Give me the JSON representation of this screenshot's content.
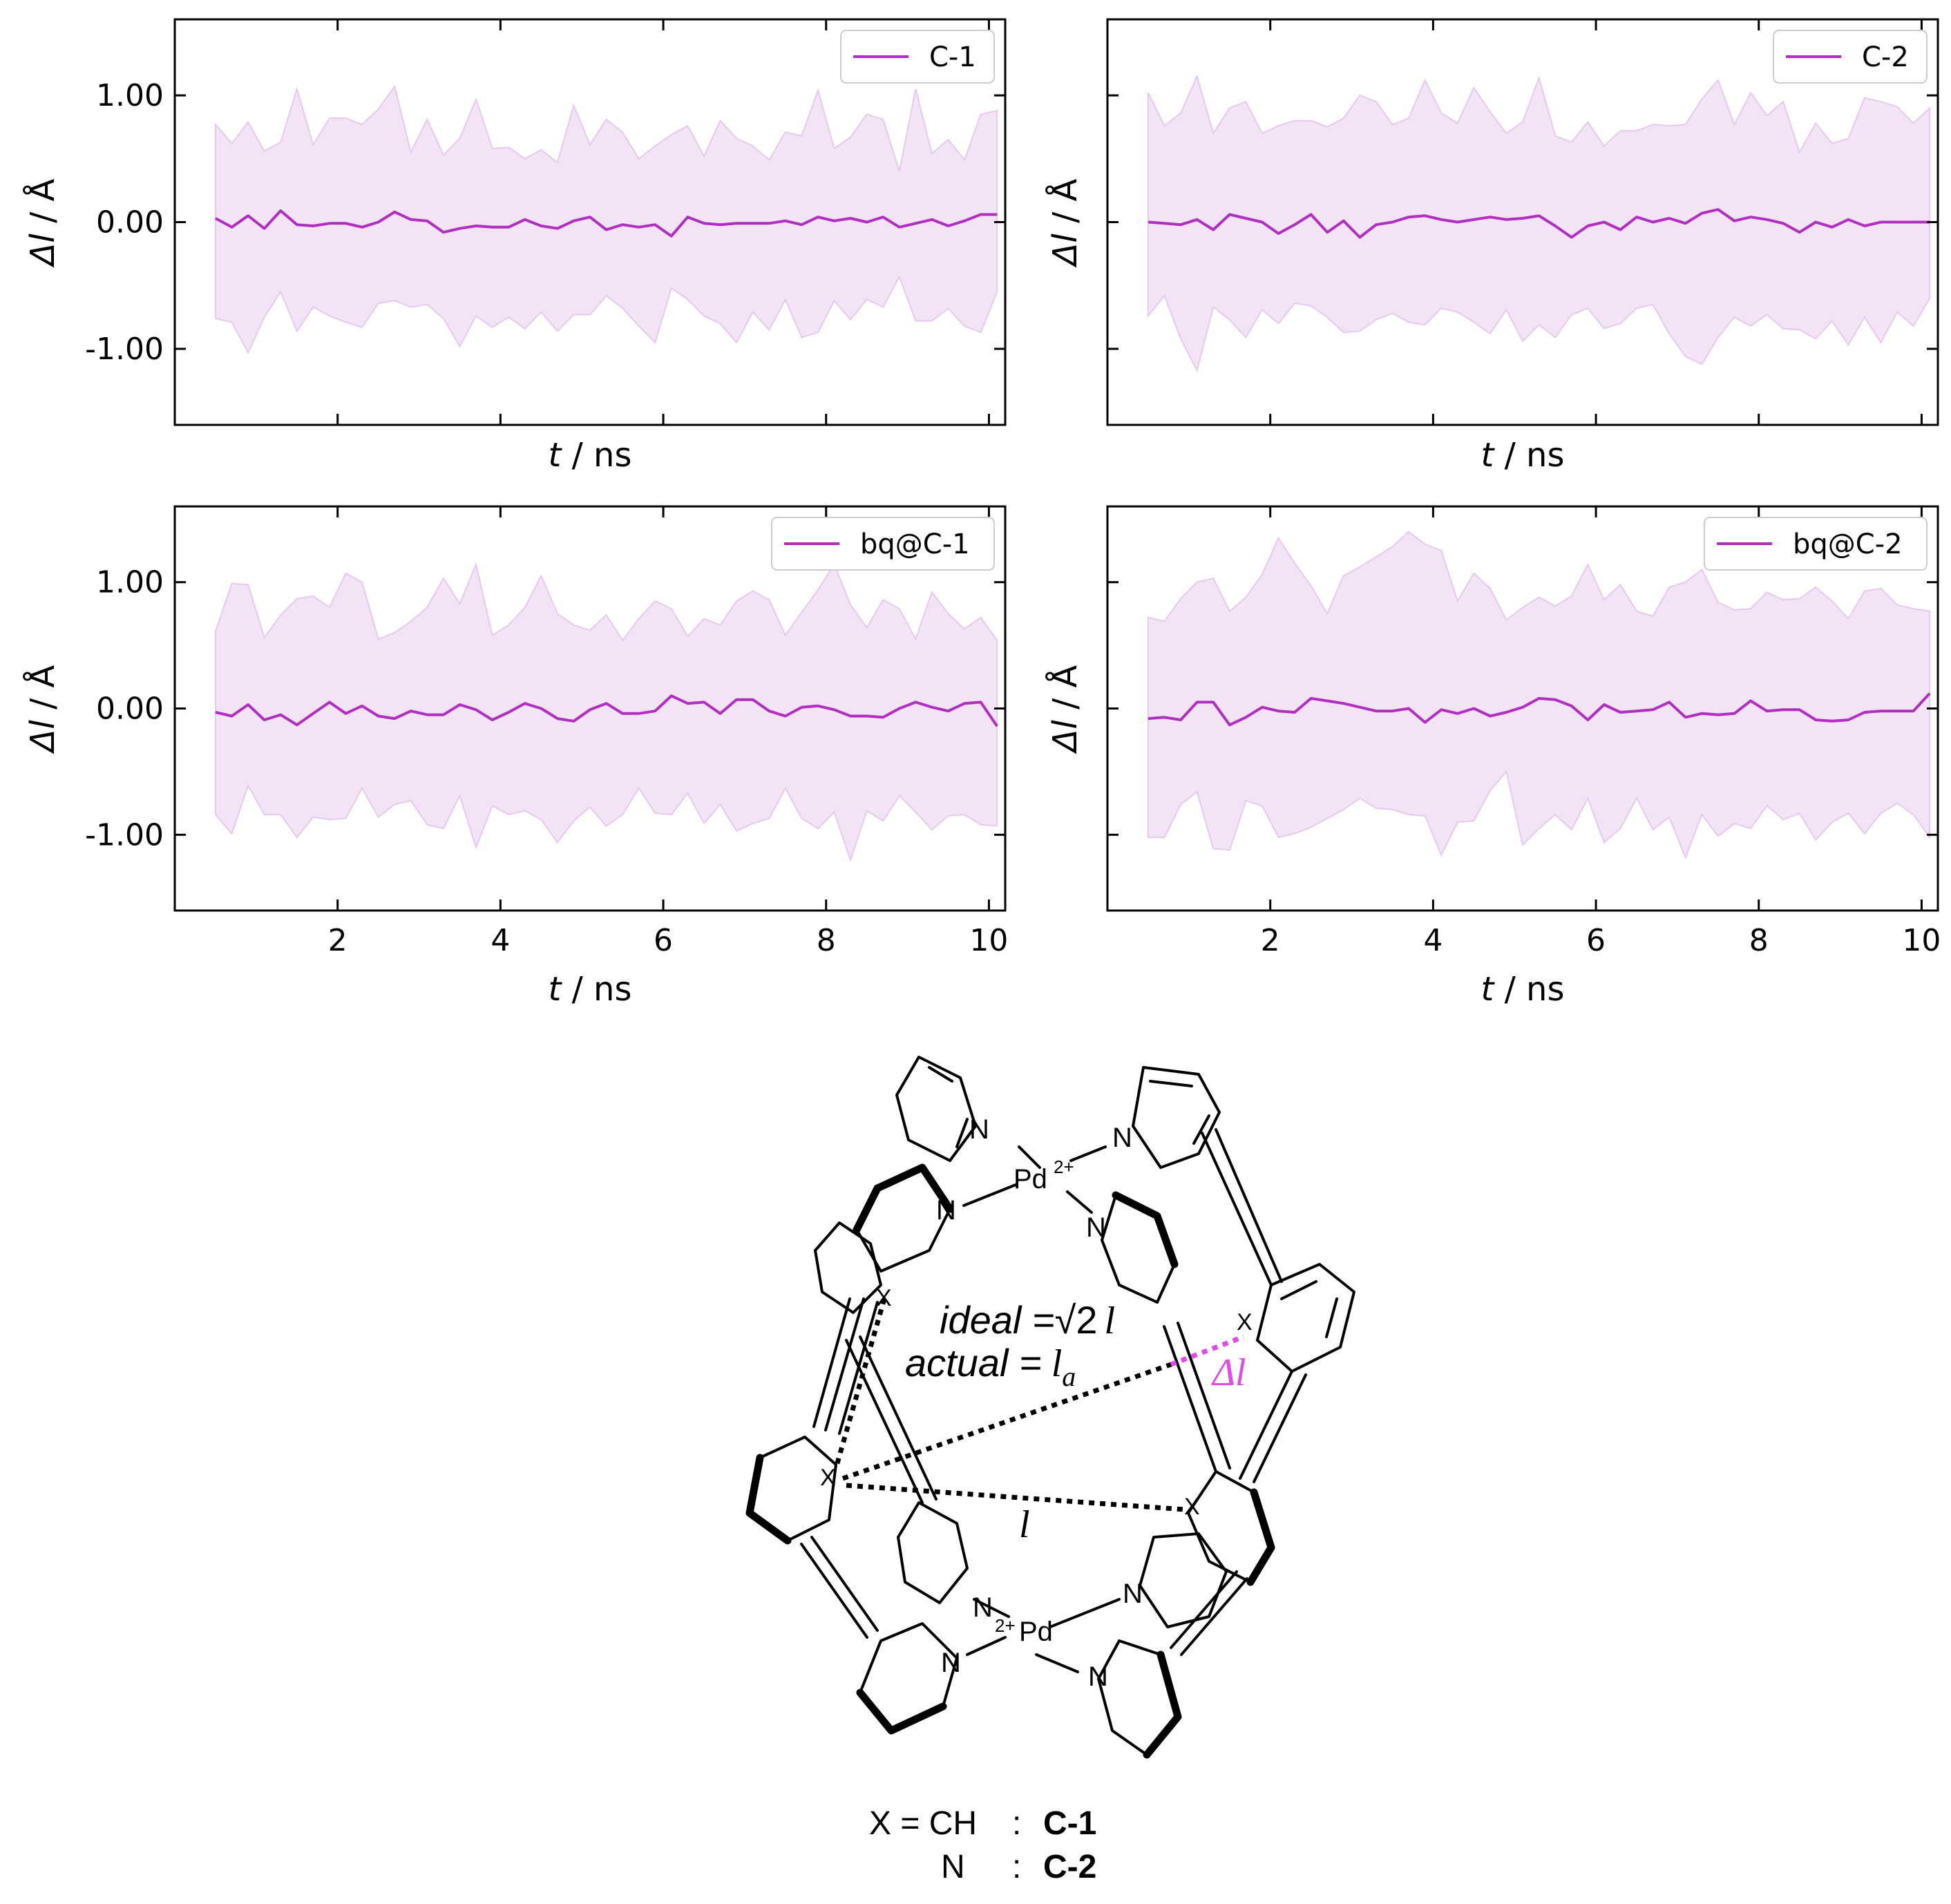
{
  "colors": {
    "line": "#b02fc0",
    "band": "#f2e4f5",
    "band_edge": "#e7c8ef",
    "delta": "#e04ae8"
  },
  "chart_data": [
    {
      "type": "area",
      "legend": "C-1",
      "legend_position": "top-right",
      "xlim": [
        0.0,
        10.2
      ],
      "ylim": [
        -1.6,
        1.6
      ],
      "xticks": [
        2,
        4,
        6,
        8,
        10
      ],
      "yticks": [
        1.0,
        0.0,
        -1.0
      ],
      "xtick_labels": [],
      "ytick_labels": [
        "1.00",
        "0.00",
        "-1.00"
      ],
      "xlabel_var": "t",
      "xlabel_unit": " / ns",
      "ylabel_var": "Δl",
      "ylabel_unit": " / Å",
      "x_start": 0.5,
      "x_step": 0.2,
      "mean": [
        0.03,
        -0.04,
        0.05,
        -0.05,
        0.09,
        -0.02,
        -0.03,
        -0.01,
        -0.01,
        -0.04,
        0.0,
        0.08,
        0.02,
        0.01,
        -0.08,
        -0.05,
        -0.03,
        -0.04,
        -0.04,
        0.02,
        -0.03,
        -0.05,
        0.01,
        0.04,
        -0.06,
        -0.02,
        -0.04,
        -0.02,
        -0.11,
        0.04,
        -0.01,
        -0.02,
        -0.01,
        -0.01,
        -0.01,
        0.01,
        -0.02,
        0.04,
        0.01,
        0.03,
        0.0,
        0.04,
        -0.04,
        -0.01,
        0.02,
        -0.03,
        0.01,
        0.06,
        0.06
      ],
      "upper": [
        0.77,
        0.62,
        0.79,
        0.56,
        0.63,
        1.05,
        0.61,
        0.82,
        0.82,
        0.77,
        0.89,
        1.07,
        0.55,
        0.81,
        0.53,
        0.66,
        0.97,
        0.58,
        0.59,
        0.5,
        0.57,
        0.47,
        0.92,
        0.61,
        0.81,
        0.71,
        0.5,
        0.6,
        0.69,
        0.76,
        0.52,
        0.8,
        0.66,
        0.6,
        0.49,
        0.71,
        0.68,
        1.04,
        0.58,
        0.67,
        0.85,
        0.81,
        0.4,
        1.05,
        0.54,
        0.65,
        0.49,
        0.85,
        0.88
      ],
      "lower": [
        -0.76,
        -0.79,
        -1.03,
        -0.75,
        -0.55,
        -0.86,
        -0.67,
        -0.74,
        -0.79,
        -0.83,
        -0.64,
        -0.62,
        -0.67,
        -0.65,
        -0.76,
        -0.98,
        -0.74,
        -0.83,
        -0.75,
        -0.84,
        -0.71,
        -0.86,
        -0.73,
        -0.73,
        -0.58,
        -0.68,
        -0.82,
        -0.95,
        -0.52,
        -0.61,
        -0.74,
        -0.8,
        -0.95,
        -0.71,
        -0.85,
        -0.61,
        -0.91,
        -0.87,
        -0.62,
        -0.77,
        -0.61,
        -0.67,
        -0.43,
        -0.78,
        -0.78,
        -0.68,
        -0.82,
        -0.87,
        -0.55
      ]
    },
    {
      "type": "area",
      "legend": "C-2",
      "legend_position": "top-right",
      "xlim": [
        0.0,
        10.2
      ],
      "ylim": [
        -1.6,
        1.6
      ],
      "xticks": [
        2,
        4,
        6,
        8,
        10
      ],
      "yticks": [
        1.0,
        0.0,
        -1.0
      ],
      "xtick_labels": [],
      "ytick_labels": [],
      "xlabel_var": "t",
      "xlabel_unit": " / ns",
      "ylabel_var": "Δl",
      "ylabel_unit": " / Å",
      "x_start": 0.5,
      "x_step": 0.2,
      "mean": [
        0.0,
        -0.01,
        -0.02,
        0.02,
        -0.06,
        0.06,
        0.03,
        0.0,
        -0.09,
        -0.02,
        0.06,
        -0.08,
        0.01,
        -0.12,
        -0.02,
        0.0,
        0.04,
        0.05,
        0.02,
        0.0,
        0.02,
        0.04,
        0.02,
        0.03,
        0.05,
        -0.03,
        -0.12,
        -0.03,
        0.0,
        -0.06,
        0.04,
        0.0,
        0.03,
        -0.01,
        0.07,
        0.1,
        0.01,
        0.04,
        0.02,
        -0.01,
        -0.08,
        0.0,
        -0.04,
        0.02,
        -0.03,
        0.0,
        0.0,
        0.0,
        0.0
      ],
      "upper": [
        1.02,
        0.76,
        0.86,
        1.15,
        0.7,
        0.9,
        0.95,
        0.7,
        0.76,
        0.8,
        0.8,
        0.75,
        0.82,
        1.0,
        0.95,
        0.77,
        0.82,
        1.12,
        0.86,
        0.78,
        1.06,
        0.87,
        0.7,
        0.79,
        1.14,
        0.68,
        0.63,
        0.79,
        0.6,
        0.72,
        0.72,
        0.77,
        0.76,
        0.77,
        0.97,
        1.12,
        0.77,
        1.02,
        0.84,
        0.95,
        0.55,
        0.78,
        0.62,
        0.66,
        0.98,
        0.95,
        0.91,
        0.78,
        0.9
      ],
      "lower": [
        -0.74,
        -0.58,
        -0.92,
        -1.17,
        -0.67,
        -0.77,
        -0.91,
        -0.69,
        -0.8,
        -0.64,
        -0.66,
        -0.75,
        -0.87,
        -0.86,
        -0.77,
        -0.72,
        -0.79,
        -0.81,
        -0.68,
        -0.71,
        -0.79,
        -0.88,
        -0.69,
        -0.94,
        -0.81,
        -0.91,
        -0.73,
        -0.68,
        -0.84,
        -0.8,
        -0.68,
        -0.65,
        -0.88,
        -1.06,
        -1.12,
        -0.91,
        -0.75,
        -0.82,
        -0.73,
        -0.84,
        -0.85,
        -0.92,
        -0.78,
        -0.97,
        -0.75,
        -0.95,
        -0.71,
        -0.82,
        -0.6
      ]
    },
    {
      "type": "area",
      "legend": "bq@C-1",
      "legend_position": "top-right",
      "xlim": [
        0.0,
        10.2
      ],
      "ylim": [
        -1.6,
        1.6
      ],
      "xticks": [
        2,
        4,
        6,
        8,
        10
      ],
      "yticks": [
        1.0,
        0.0,
        -1.0
      ],
      "xtick_labels": [
        "2",
        "4",
        "6",
        "8",
        "10"
      ],
      "ytick_labels": [
        "1.00",
        "0.00",
        "-1.00"
      ],
      "xlabel_var": "t",
      "xlabel_unit": " / ns",
      "ylabel_var": "Δl",
      "ylabel_unit": " / Å",
      "x_start": 0.5,
      "x_step": 0.2,
      "mean": [
        -0.03,
        -0.06,
        0.03,
        -0.09,
        -0.05,
        -0.13,
        -0.04,
        0.05,
        -0.04,
        0.02,
        -0.06,
        -0.08,
        -0.02,
        -0.05,
        -0.05,
        0.03,
        -0.01,
        -0.09,
        -0.03,
        0.04,
        0.0,
        -0.08,
        -0.1,
        -0.01,
        0.04,
        -0.04,
        -0.04,
        -0.02,
        0.1,
        0.04,
        0.05,
        -0.04,
        0.07,
        0.07,
        -0.02,
        -0.06,
        0.01,
        0.02,
        -0.01,
        -0.06,
        -0.06,
        -0.07,
        0.0,
        0.05,
        0.01,
        -0.02,
        0.04,
        0.05,
        -0.14
      ],
      "upper": [
        0.61,
        0.99,
        0.98,
        0.56,
        0.74,
        0.87,
        0.89,
        0.8,
        1.07,
        1.0,
        0.55,
        0.6,
        0.69,
        0.8,
        1.03,
        0.83,
        1.14,
        0.58,
        0.66,
        0.8,
        1.05,
        0.75,
        0.66,
        0.62,
        0.74,
        0.54,
        0.71,
        0.85,
        0.79,
        0.57,
        0.71,
        0.66,
        0.85,
        0.93,
        0.86,
        0.58,
        0.76,
        0.94,
        1.14,
        0.82,
        0.64,
        0.86,
        0.79,
        0.55,
        0.92,
        0.75,
        0.63,
        0.72,
        0.54
      ],
      "lower": [
        -0.84,
        -0.99,
        -0.61,
        -0.84,
        -0.84,
        -1.02,
        -0.86,
        -0.88,
        -0.87,
        -0.63,
        -0.86,
        -0.76,
        -0.73,
        -0.92,
        -0.95,
        -0.69,
        -1.1,
        -0.77,
        -0.84,
        -0.81,
        -0.88,
        -1.06,
        -0.89,
        -0.78,
        -0.93,
        -0.84,
        -0.63,
        -0.83,
        -0.84,
        -0.67,
        -0.91,
        -0.76,
        -0.97,
        -0.91,
        -0.87,
        -0.63,
        -0.87,
        -0.95,
        -0.82,
        -1.2,
        -0.81,
        -0.89,
        -0.69,
        -0.82,
        -0.96,
        -0.85,
        -0.84,
        -0.92,
        -0.93
      ]
    },
    {
      "type": "area",
      "legend": "bq@C-2",
      "legend_position": "top-right",
      "xlim": [
        0.0,
        10.2
      ],
      "ylim": [
        -1.6,
        1.6
      ],
      "xticks": [
        2,
        4,
        6,
        8,
        10
      ],
      "yticks": [
        1.0,
        0.0,
        -1.0
      ],
      "xtick_labels": [
        "2",
        "4",
        "6",
        "8",
        "10"
      ],
      "ytick_labels": [],
      "xlabel_var": "t",
      "xlabel_unit": " / ns",
      "ylabel_var": "Δl",
      "ylabel_unit": " / Å",
      "x_start": 0.5,
      "x_step": 0.2,
      "mean": [
        -0.08,
        -0.07,
        -0.09,
        0.05,
        0.05,
        -0.13,
        -0.07,
        0.01,
        -0.02,
        -0.03,
        0.08,
        0.06,
        0.04,
        0.01,
        -0.02,
        -0.02,
        0.0,
        -0.11,
        -0.01,
        -0.04,
        0.0,
        -0.06,
        -0.03,
        0.01,
        0.08,
        0.07,
        0.02,
        -0.09,
        0.03,
        -0.03,
        -0.02,
        -0.01,
        0.05,
        -0.07,
        -0.04,
        -0.05,
        -0.04,
        0.06,
        -0.02,
        -0.01,
        -0.01,
        -0.09,
        -0.1,
        -0.09,
        -0.03,
        -0.02,
        -0.02,
        -0.02,
        0.12
      ],
      "upper": [
        0.72,
        0.69,
        0.87,
        1.0,
        1.03,
        0.77,
        0.88,
        1.06,
        1.35,
        1.15,
        0.97,
        0.75,
        1.05,
        1.12,
        1.2,
        1.28,
        1.4,
        1.3,
        1.25,
        0.85,
        1.07,
        0.95,
        0.7,
        0.8,
        0.88,
        0.81,
        0.89,
        1.14,
        0.86,
        0.98,
        0.77,
        0.73,
        0.96,
        1.0,
        1.1,
        0.84,
        0.78,
        0.79,
        0.92,
        0.86,
        0.87,
        0.96,
        0.85,
        0.71,
        0.93,
        0.95,
        0.82,
        0.79,
        0.77
      ],
      "lower": [
        -1.02,
        -1.02,
        -0.76,
        -0.66,
        -1.11,
        -1.12,
        -0.73,
        -0.77,
        -1.02,
        -0.99,
        -0.94,
        -0.87,
        -0.8,
        -0.71,
        -0.79,
        -0.8,
        -0.84,
        -0.85,
        -1.16,
        -0.9,
        -0.89,
        -0.65,
        -0.5,
        -1.08,
        -0.95,
        -0.84,
        -0.96,
        -0.71,
        -1.06,
        -0.95,
        -0.71,
        -0.96,
        -0.86,
        -1.18,
        -0.84,
        -1.01,
        -0.91,
        -0.95,
        -0.77,
        -0.88,
        -0.83,
        -1.04,
        -0.9,
        -0.83,
        -0.99,
        -0.83,
        -0.75,
        -0.84,
        -1.02
      ]
    }
  ],
  "diagram": {
    "atoms": {
      "N": "N",
      "Pd_top": "Pd",
      "Pd_top_charge": "2+",
      "Pd_bottom": "Pd",
      "Pd_bottom_charge": "2+",
      "X": "X"
    },
    "ideal_prefix": "ideal =",
    "ideal_value": "√2",
    "ideal_var": "l",
    "actual_prefix": "actual =",
    "actual_var": "l",
    "actual_sub": "a",
    "delta_label": "Δl",
    "l_label": "l"
  },
  "caption": {
    "line1_left": "X = CH",
    "line1_sep": ":",
    "line1_right": "C-1",
    "line2_left": "N",
    "line2_sep": ":",
    "line2_right": "C-2"
  }
}
